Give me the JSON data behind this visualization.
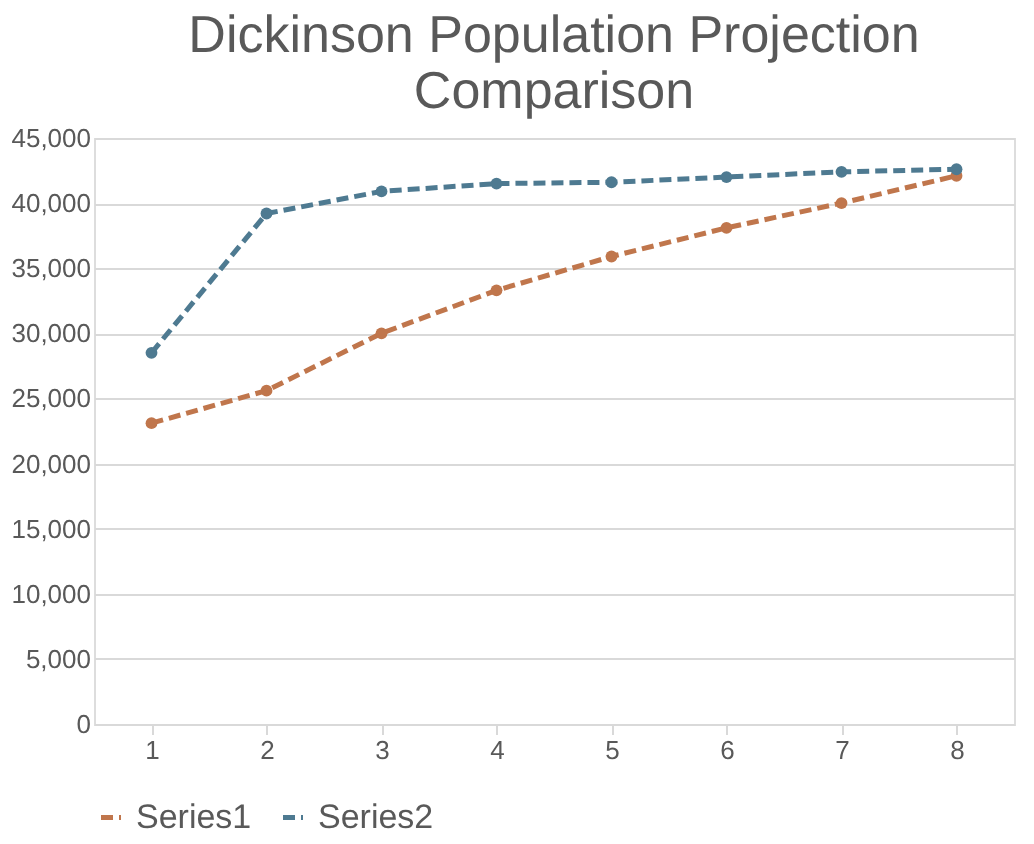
{
  "chart_data": {
    "type": "line",
    "title": "Dickinson Population Projection Comparison",
    "categories": [
      "1",
      "2",
      "3",
      "4",
      "5",
      "6",
      "7",
      "8"
    ],
    "series": [
      {
        "name": "Series1",
        "color": "#c0764c",
        "values": [
          23100,
          25600,
          30000,
          33300,
          35900,
          38100,
          40000,
          42100
        ]
      },
      {
        "name": "Series2",
        "color": "#4e7a91",
        "values": [
          28500,
          39200,
          40900,
          41500,
          41600,
          42000,
          42400,
          42600
        ]
      }
    ],
    "ylim": [
      0,
      45000
    ],
    "yticks": [
      0,
      {
        "value": 5000,
        "label": "5,000"
      },
      {
        "value": 10000,
        "label": "10,000"
      },
      {
        "value": 15000,
        "label": "15,000"
      },
      {
        "value": 20000,
        "label": "20,000"
      },
      {
        "value": 25000,
        "label": "25,000"
      },
      {
        "value": 30000,
        "label": "30,000"
      },
      {
        "value": 35000,
        "label": "35,000"
      },
      {
        "value": 40000,
        "label": "40,000"
      },
      {
        "value": 45000,
        "label": "45,000"
      }
    ],
    "grid": "y",
    "legend": "bottom",
    "marker": "circle",
    "line_style": "dashed"
  }
}
